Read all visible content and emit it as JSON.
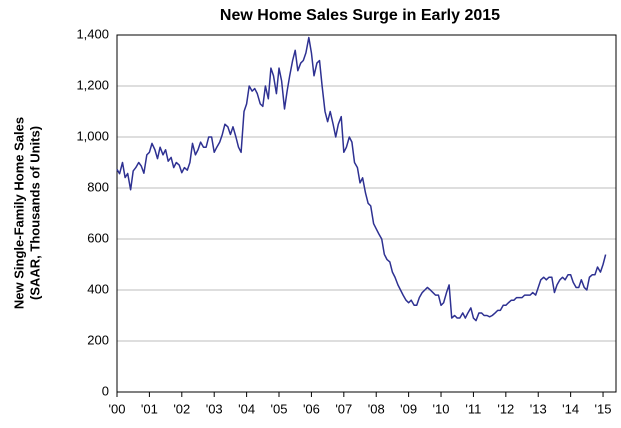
{
  "chart_data": {
    "type": "line",
    "title": "New Home Sales Surge in Early 2015",
    "ylabel": [
      "New Single-Family Home Sales",
      "(SAAR, Thousands of Units)"
    ],
    "x": [
      2000,
      2000.08,
      2000.17,
      2000.25,
      2000.33,
      2000.42,
      2000.5,
      2000.58,
      2000.67,
      2000.75,
      2000.83,
      2000.92,
      2001,
      2001.08,
      2001.17,
      2001.25,
      2001.33,
      2001.42,
      2001.5,
      2001.58,
      2001.67,
      2001.75,
      2001.83,
      2001.92,
      2002,
      2002.08,
      2002.17,
      2002.25,
      2002.33,
      2002.42,
      2002.5,
      2002.58,
      2002.67,
      2002.75,
      2002.83,
      2002.92,
      2003,
      2003.08,
      2003.17,
      2003.25,
      2003.33,
      2003.42,
      2003.5,
      2003.58,
      2003.67,
      2003.75,
      2003.83,
      2003.92,
      2004,
      2004.08,
      2004.17,
      2004.25,
      2004.33,
      2004.42,
      2004.5,
      2004.58,
      2004.67,
      2004.75,
      2004.83,
      2004.92,
      2005,
      2005.08,
      2005.17,
      2005.25,
      2005.33,
      2005.42,
      2005.5,
      2005.58,
      2005.67,
      2005.75,
      2005.83,
      2005.92,
      2006,
      2006.08,
      2006.17,
      2006.25,
      2006.33,
      2006.42,
      2006.5,
      2006.58,
      2006.67,
      2006.75,
      2006.83,
      2006.92,
      2007,
      2007.08,
      2007.17,
      2007.25,
      2007.33,
      2007.42,
      2007.5,
      2007.58,
      2007.67,
      2007.75,
      2007.83,
      2007.92,
      2008,
      2008.08,
      2008.17,
      2008.25,
      2008.33,
      2008.42,
      2008.5,
      2008.58,
      2008.67,
      2008.75,
      2008.83,
      2008.92,
      2009,
      2009.08,
      2009.17,
      2009.25,
      2009.33,
      2009.42,
      2009.5,
      2009.58,
      2009.67,
      2009.75,
      2009.83,
      2009.92,
      2010,
      2010.08,
      2010.17,
      2010.25,
      2010.33,
      2010.42,
      2010.5,
      2010.58,
      2010.67,
      2010.75,
      2010.83,
      2010.92,
      2011,
      2011.08,
      2011.17,
      2011.25,
      2011.33,
      2011.42,
      2011.5,
      2011.58,
      2011.67,
      2011.75,
      2011.83,
      2011.92,
      2012,
      2012.08,
      2012.17,
      2012.25,
      2012.33,
      2012.42,
      2012.5,
      2012.58,
      2012.67,
      2012.75,
      2012.83,
      2012.92,
      2013,
      2013.08,
      2013.17,
      2013.25,
      2013.33,
      2013.42,
      2013.5,
      2013.58,
      2013.67,
      2013.75,
      2013.83,
      2013.92,
      2014,
      2014.08,
      2014.17,
      2014.25,
      2014.33,
      2014.42,
      2014.5,
      2014.58,
      2014.67,
      2014.75,
      2014.83,
      2014.92,
      2015,
      2015.08
    ],
    "series": [
      {
        "color": "#2e3192",
        "values": [
          873,
          856,
          900,
          841,
          857,
          793,
          867,
          880,
          900,
          886,
          858,
          930,
          940,
          975,
          950,
          915,
          960,
          930,
          950,
          905,
          920,
          880,
          900,
          890,
          860,
          880,
          870,
          900,
          975,
          930,
          950,
          980,
          960,
          960,
          1000,
          1000,
          940,
          960,
          980,
          1010,
          1050,
          1040,
          1010,
          1040,
          1000,
          960,
          940,
          1100,
          1130,
          1200,
          1180,
          1190,
          1170,
          1130,
          1120,
          1200,
          1150,
          1270,
          1240,
          1170,
          1270,
          1220,
          1110,
          1180,
          1240,
          1300,
          1340,
          1260,
          1290,
          1300,
          1330,
          1390,
          1330,
          1240,
          1290,
          1300,
          1200,
          1100,
          1060,
          1100,
          1050,
          1000,
          1050,
          1080,
          940,
          960,
          1000,
          980,
          900,
          880,
          820,
          840,
          780,
          740,
          730,
          660,
          640,
          620,
          600,
          540,
          520,
          510,
          470,
          450,
          420,
          400,
          380,
          360,
          350,
          360,
          340,
          340,
          370,
          390,
          400,
          410,
          400,
          390,
          380,
          380,
          340,
          350,
          390,
          420,
          290,
          300,
          290,
          290,
          310,
          290,
          310,
          330,
          290,
          280,
          310,
          310,
          300,
          300,
          295,
          300,
          310,
          320,
          320,
          340,
          340,
          350,
          360,
          360,
          370,
          370,
          370,
          380,
          380,
          380,
          390,
          380,
          410,
          440,
          450,
          440,
          450,
          450,
          390,
          420,
          440,
          450,
          440,
          460,
          460,
          430,
          410,
          410,
          440,
          410,
          400,
          450,
          460,
          460,
          490,
          470,
          500,
          539
        ]
      }
    ],
    "xlim": [
      2000,
      2015.4
    ],
    "xticks": [
      {
        "value": 2000,
        "label": "'00"
      },
      {
        "value": 2001,
        "label": "'01"
      },
      {
        "value": 2002,
        "label": "'02"
      },
      {
        "value": 2003,
        "label": "'03"
      },
      {
        "value": 2004,
        "label": "'04"
      },
      {
        "value": 2005,
        "label": "'05"
      },
      {
        "value": 2006,
        "label": "'06"
      },
      {
        "value": 2007,
        "label": "'07"
      },
      {
        "value": 2008,
        "label": "'08"
      },
      {
        "value": 2009,
        "label": "'09"
      },
      {
        "value": 2010,
        "label": "'10"
      },
      {
        "value": 2011,
        "label": "'11"
      },
      {
        "value": 2012,
        "label": "'12"
      },
      {
        "value": 2013,
        "label": "'13"
      },
      {
        "value": 2014,
        "label": "'14"
      },
      {
        "value": 2015,
        "label": "'15"
      }
    ],
    "ylim": [
      0,
      1400
    ],
    "yticks": [
      0,
      200,
      400,
      600,
      800,
      {
        "value": 1000,
        "label": "1,000"
      },
      {
        "value": 1200,
        "label": "1,200"
      },
      {
        "value": 1400,
        "label": "1,400"
      }
    ],
    "grid": true
  }
}
